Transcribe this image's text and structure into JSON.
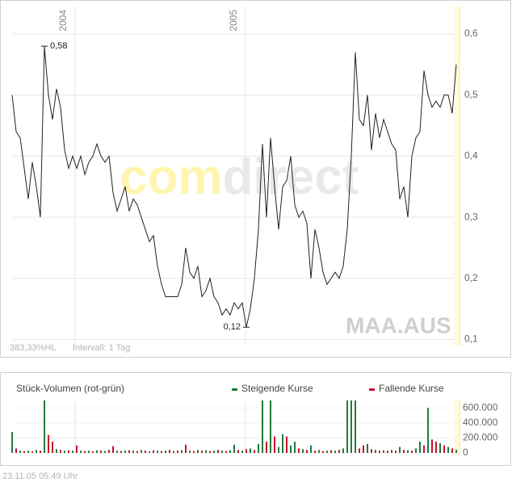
{
  "chart_data": [
    {
      "type": "line",
      "watermark": [
        "com",
        "direct"
      ],
      "symbol": "MAA.AUS",
      "notes": [
        "383,33%HL",
        "Intervall: 1 Tag"
      ],
      "xlim": [
        0,
        110
      ],
      "xticks": [
        {
          "value": 15.6,
          "label": "2004"
        },
        {
          "value": 57.8,
          "label": "2005"
        }
      ],
      "ylim": [
        0.09,
        0.645
      ],
      "yticks": [
        {
          "value": 0.1,
          "label": "0,1"
        },
        {
          "value": 0.2,
          "label": "0,2"
        },
        {
          "value": 0.3,
          "label": "0,3"
        },
        {
          "value": 0.4,
          "label": "0,4"
        },
        {
          "value": 0.5,
          "label": "0,5"
        },
        {
          "value": 0.6,
          "label": "0,6"
        }
      ],
      "grid": true,
      "series": [
        {
          "color": "#222222",
          "values": [
            0.5,
            0.44,
            0.43,
            0.38,
            0.33,
            0.39,
            0.35,
            0.3,
            0.58,
            0.5,
            0.46,
            0.51,
            0.48,
            0.41,
            0.38,
            0.4,
            0.38,
            0.4,
            0.37,
            0.39,
            0.4,
            0.42,
            0.4,
            0.39,
            0.4,
            0.34,
            0.31,
            0.33,
            0.35,
            0.31,
            0.33,
            0.32,
            0.3,
            0.28,
            0.26,
            0.27,
            0.22,
            0.19,
            0.17,
            0.17,
            0.17,
            0.17,
            0.19,
            0.25,
            0.21,
            0.2,
            0.22,
            0.17,
            0.18,
            0.2,
            0.17,
            0.16,
            0.14,
            0.15,
            0.14,
            0.16,
            0.15,
            0.16,
            0.12,
            0.15,
            0.2,
            0.28,
            0.42,
            0.3,
            0.43,
            0.35,
            0.28,
            0.35,
            0.36,
            0.4,
            0.32,
            0.3,
            0.31,
            0.29,
            0.2,
            0.28,
            0.25,
            0.21,
            0.19,
            0.2,
            0.21,
            0.2,
            0.22,
            0.28,
            0.4,
            0.57,
            0.46,
            0.45,
            0.5,
            0.41,
            0.47,
            0.43,
            0.46,
            0.44,
            0.42,
            0.41,
            0.33,
            0.35,
            0.3,
            0.4,
            0.43,
            0.44,
            0.54,
            0.5,
            0.48,
            0.49,
            0.48,
            0.5,
            0.5,
            0.47,
            0.55
          ]
        }
      ],
      "annotations": [
        {
          "text": "0,58",
          "value": 0.58,
          "x": 8
        },
        {
          "text": "0,12",
          "value": 0.12,
          "x": 58
        }
      ]
    },
    {
      "type": "bar",
      "title": "Stück-Volumen (rot-grün)",
      "xlim": [
        0,
        110
      ],
      "ylim": [
        0,
        700000
      ],
      "yticks": [
        0,
        {
          "value": 200000,
          "label": "200.000"
        },
        {
          "value": 400000,
          "label": "400.000"
        },
        {
          "value": 600000,
          "label": "600.000"
        }
      ],
      "series": [
        {
          "name": "Steigende Kurse",
          "color": "#1e7b3c",
          "values": [
            280000,
            null,
            30000,
            null,
            30000,
            null,
            40000,
            null,
            700000,
            null,
            null,
            50000,
            null,
            30000,
            null,
            30000,
            null,
            30000,
            null,
            30000,
            null,
            35000,
            null,
            25000,
            null,
            null,
            30000,
            null,
            30000,
            null,
            30000,
            null,
            40000,
            null,
            20000,
            null,
            30000,
            null,
            30000,
            null,
            25000,
            null,
            35000,
            null,
            30000,
            null,
            40000,
            null,
            35000,
            null,
            30000,
            null,
            30000,
            null,
            35000,
            110000,
            null,
            30000,
            null,
            60000,
            null,
            120000,
            700000,
            null,
            700000,
            null,
            80000,
            250000,
            null,
            100000,
            150000,
            null,
            50000,
            null,
            100000,
            null,
            40000,
            null,
            30000,
            null,
            30000,
            null,
            60000,
            700000,
            700000,
            700000,
            null,
            null,
            120000,
            null,
            40000,
            null,
            35000,
            null,
            40000,
            null,
            80000,
            null,
            35000,
            null,
            60000,
            150000,
            null,
            600000,
            null,
            null,
            130000,
            null,
            80000,
            null,
            40000
          ]
        },
        {
          "name": "Fallende Kurse",
          "color": "#c8102e",
          "values": [
            null,
            60000,
            null,
            25000,
            null,
            20000,
            null,
            30000,
            null,
            240000,
            150000,
            null,
            40000,
            null,
            35000,
            null,
            100000,
            null,
            25000,
            null,
            20000,
            null,
            30000,
            null,
            40000,
            90000,
            null,
            25000,
            null,
            35000,
            null,
            25000,
            null,
            30000,
            null,
            35000,
            null,
            25000,
            null,
            40000,
            null,
            30000,
            null,
            110000,
            null,
            25000,
            null,
            30000,
            null,
            25000,
            null,
            40000,
            null,
            25000,
            null,
            null,
            40000,
            null,
            50000,
            null,
            40000,
            null,
            null,
            150000,
            null,
            220000,
            null,
            null,
            220000,
            null,
            null,
            60000,
            null,
            40000,
            null,
            30000,
            null,
            25000,
            null,
            35000,
            null,
            40000,
            null,
            null,
            null,
            null,
            60000,
            100000,
            null,
            50000,
            null,
            30000,
            null,
            30000,
            null,
            30000,
            null,
            40000,
            null,
            30000,
            null,
            null,
            100000,
            null,
            180000,
            150000,
            null,
            100000,
            null,
            60000,
            null
          ]
        }
      ]
    }
  ],
  "footer": "23.11.05   05:49 Uhr"
}
